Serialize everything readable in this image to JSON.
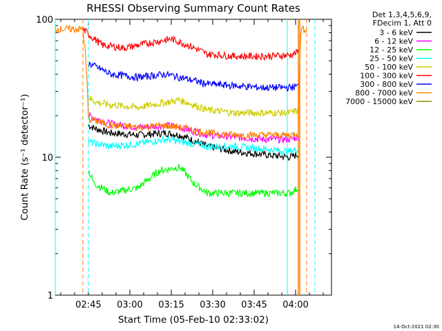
{
  "chart_data": {
    "type": "line",
    "title": "RHESSI Observing Summary Count Rates",
    "xlabel": "Start Time (05-Feb-10 02:33:02)",
    "ylabel": "Count Rate (s⁻¹ detector⁻¹)",
    "yscale": "log",
    "ylim": [
      1,
      100
    ],
    "xlim_minutes_after_0233": [
      0,
      100
    ],
    "yticks": [
      "1",
      "10",
      "100"
    ],
    "xticks": [
      {
        "label": "02:45",
        "t": 12
      },
      {
        "label": "03:00",
        "t": 27
      },
      {
        "label": "03:15",
        "t": 42
      },
      {
        "label": "03:30",
        "t": 57
      },
      {
        "label": "03:45",
        "t": 72
      },
      {
        "label": "04:00",
        "t": 87
      }
    ],
    "legend_header": [
      "Det 1,3,4,5,6,9,",
      "FDecim 1, Att 0"
    ],
    "legend_position": "right",
    "series": [
      {
        "name": "3 - 6 keV",
        "color": "#000000",
        "points": [
          [
            12,
            17
          ],
          [
            15,
            16
          ],
          [
            20,
            15
          ],
          [
            30,
            14.5
          ],
          [
            40,
            15
          ],
          [
            45,
            14.5
          ],
          [
            55,
            12
          ],
          [
            65,
            11
          ],
          [
            75,
            10.5
          ],
          [
            85,
            10
          ],
          [
            88,
            10.5
          ]
        ]
      },
      {
        "name": "6 - 12 keV",
        "color": "#ff00ff",
        "points": [
          [
            12,
            20
          ],
          [
            15,
            19
          ],
          [
            20,
            17.5
          ],
          [
            30,
            16.5
          ],
          [
            40,
            17
          ],
          [
            45,
            16.5
          ],
          [
            55,
            14.5
          ],
          [
            65,
            14
          ],
          [
            75,
            13.5
          ],
          [
            85,
            13.5
          ],
          [
            88,
            14
          ]
        ]
      },
      {
        "name": "12 - 25 keV",
        "color": "#00ff00",
        "points": [
          [
            12,
            8
          ],
          [
            14,
            6.5
          ],
          [
            20,
            5.5
          ],
          [
            30,
            6
          ],
          [
            38,
            8
          ],
          [
            45,
            8.5
          ],
          [
            50,
            6.5
          ],
          [
            55,
            5.5
          ],
          [
            65,
            5.5
          ],
          [
            75,
            5.5
          ],
          [
            85,
            5.5
          ],
          [
            88,
            6
          ]
        ]
      },
      {
        "name": "25 - 50 keV",
        "color": "#00ffff",
        "points": [
          [
            12,
            13
          ],
          [
            15,
            12.5
          ],
          [
            20,
            12
          ],
          [
            30,
            12.5
          ],
          [
            40,
            13.5
          ],
          [
            45,
            13
          ],
          [
            55,
            12
          ],
          [
            65,
            12
          ],
          [
            75,
            11.5
          ],
          [
            85,
            11
          ],
          [
            88,
            11.5
          ]
        ]
      },
      {
        "name": "50 - 100 keV",
        "color": "#cccc00",
        "points": [
          [
            12,
            27
          ],
          [
            15,
            25
          ],
          [
            20,
            24
          ],
          [
            30,
            23
          ],
          [
            40,
            25
          ],
          [
            45,
            26
          ],
          [
            55,
            22
          ],
          [
            65,
            21
          ],
          [
            75,
            21
          ],
          [
            85,
            21
          ],
          [
            88,
            22
          ]
        ]
      },
      {
        "name": "100 - 300 keV",
        "color": "#ff0000",
        "points": [
          [
            10,
            85
          ],
          [
            13,
            75
          ],
          [
            17,
            65
          ],
          [
            25,
            62
          ],
          [
            35,
            68
          ],
          [
            42,
            72
          ],
          [
            48,
            65
          ],
          [
            55,
            56
          ],
          [
            65,
            54
          ],
          [
            75,
            54
          ],
          [
            85,
            55
          ],
          [
            88,
            58
          ]
        ]
      },
      {
        "name": "300 - 800 keV",
        "color": "#0000ff",
        "points": [
          [
            12,
            48
          ],
          [
            15,
            45
          ],
          [
            20,
            40
          ],
          [
            30,
            38
          ],
          [
            40,
            40
          ],
          [
            45,
            38
          ],
          [
            55,
            34
          ],
          [
            65,
            33
          ],
          [
            75,
            32
          ],
          [
            85,
            32
          ],
          [
            88,
            33
          ]
        ]
      },
      {
        "name": "800 - 7000 keV",
        "color": "#ff8000",
        "points": [
          [
            0,
            85
          ],
          [
            10,
            85
          ],
          [
            12,
            19
          ],
          [
            20,
            17
          ],
          [
            30,
            16.5
          ],
          [
            40,
            17
          ],
          [
            45,
            16.5
          ],
          [
            55,
            15
          ],
          [
            65,
            14.5
          ],
          [
            75,
            14.5
          ],
          [
            85,
            14.5
          ],
          [
            88,
            15
          ],
          [
            89,
            85
          ],
          [
            91,
            85
          ]
        ]
      },
      {
        "name": "7000 - 15000 keV",
        "color": "#888800",
        "points": []
      }
    ],
    "markers": {
      "orange_dashed_t": [
        10,
        91
      ],
      "cyan_dashed_t": [
        12,
        94
      ],
      "cyan_solid_t": [
        0,
        84
      ],
      "orange_solid_t": [
        88,
        88.5
      ]
    }
  },
  "footer": {
    "date": "14-Oct-2021 02:30"
  }
}
